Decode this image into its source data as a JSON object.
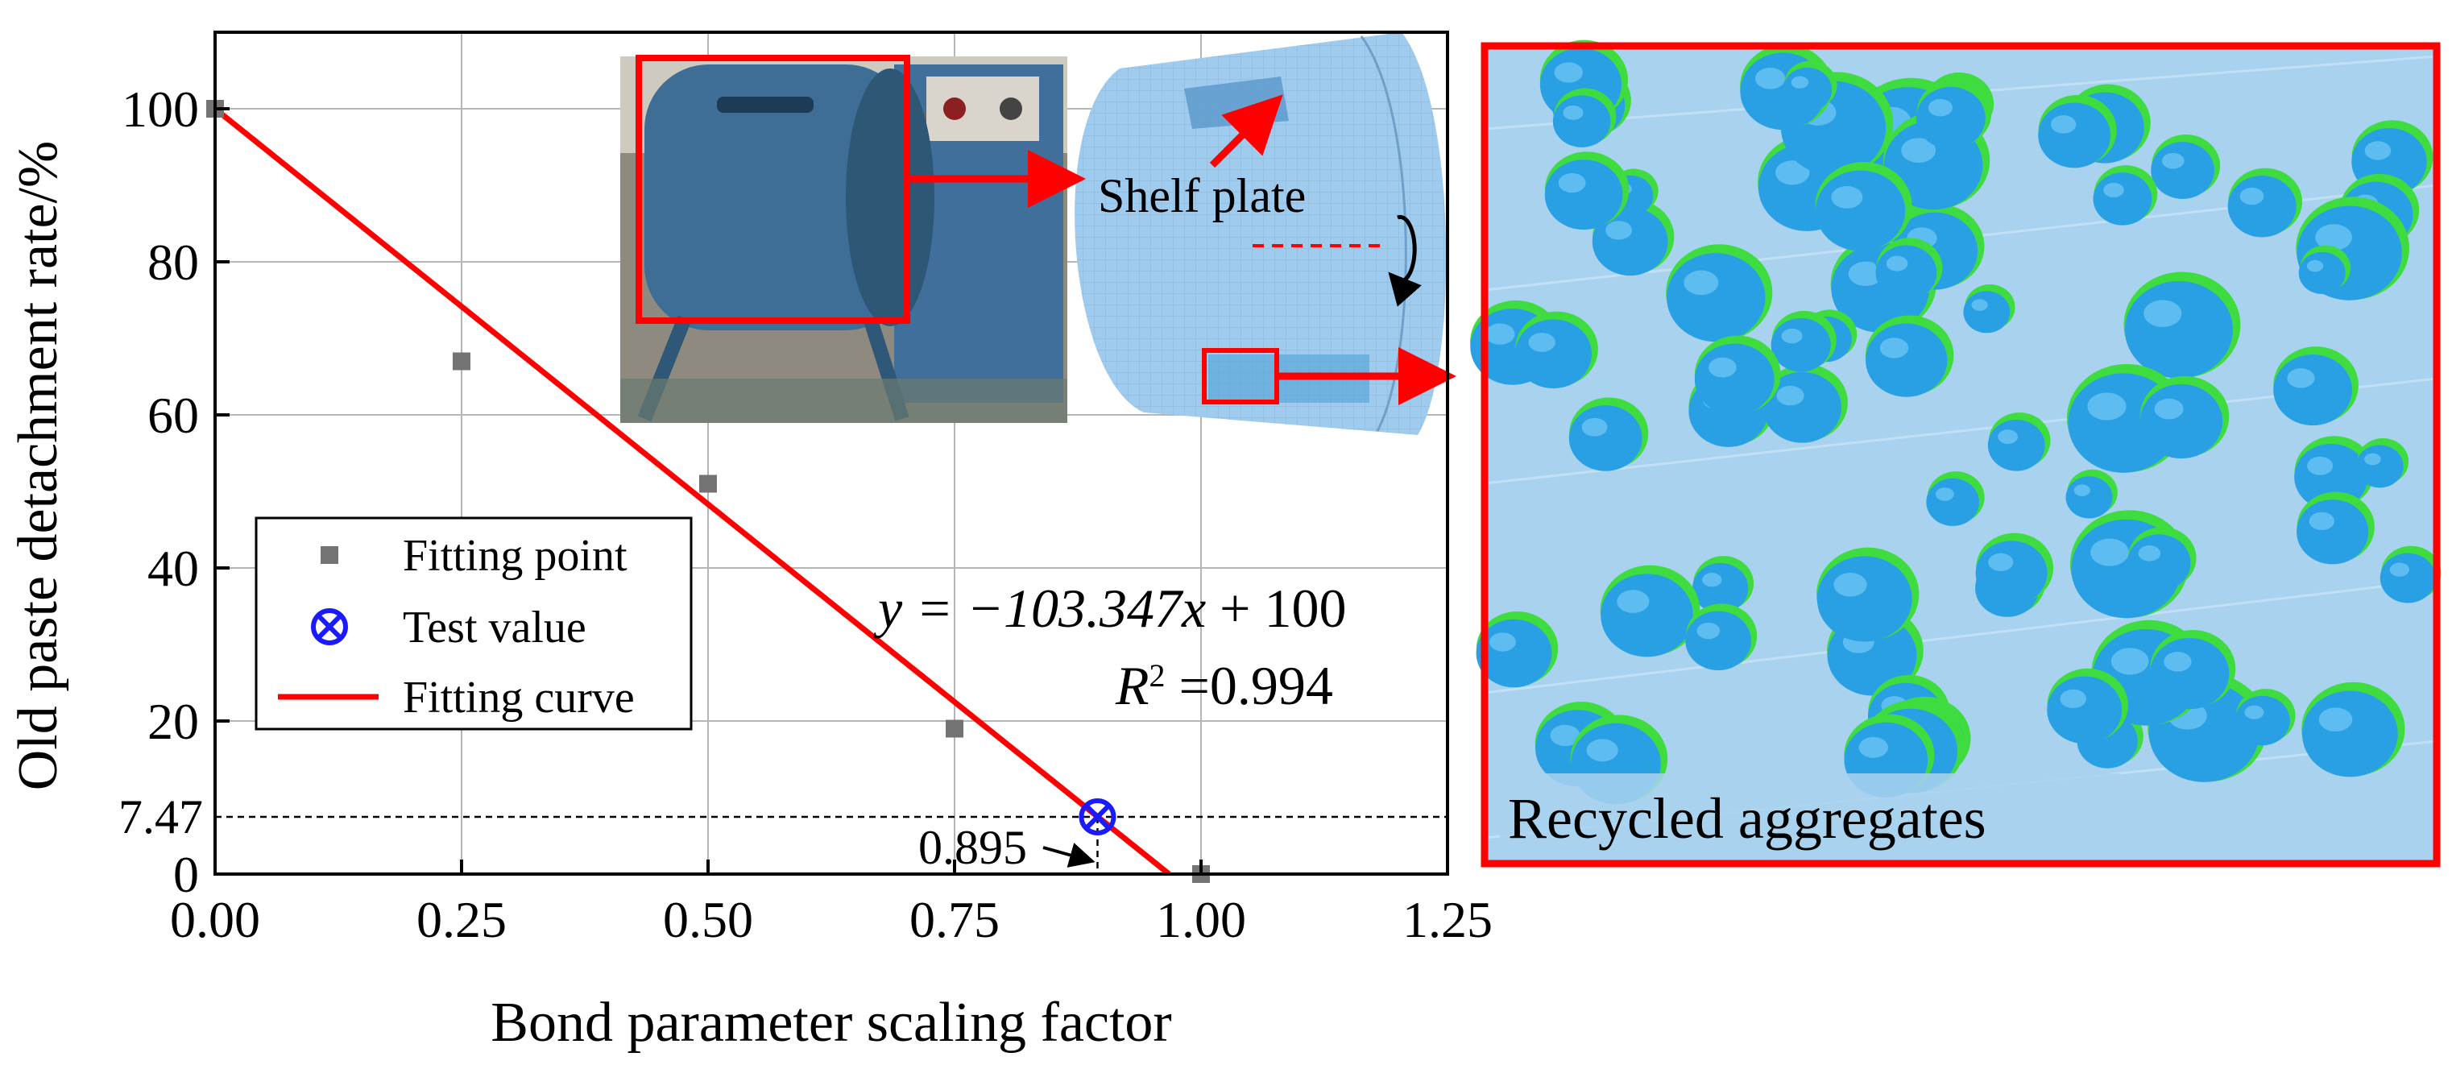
{
  "chart_data": {
    "type": "scatter",
    "xlabel": "Bond parameter scaling factor",
    "ylabel": "Old paste detachment rate/%",
    "xlim": [
      0,
      1.25
    ],
    "ylim": [
      0,
      110
    ],
    "xticks": [
      "0.00",
      "0.25",
      "0.50",
      "0.75",
      "1.00",
      "1.25"
    ],
    "yticks": [
      "0",
      "20",
      "40",
      "60",
      "80",
      "100"
    ],
    "grid": true,
    "legend_position": "lower-left",
    "series": [
      {
        "name": "Fitting point",
        "kind": "scatter",
        "marker": "square",
        "color": "#737373",
        "x": [
          0.0,
          0.25,
          0.5,
          0.75,
          1.0
        ],
        "y": [
          100,
          67,
          51,
          19,
          0
        ]
      },
      {
        "name": "Test value",
        "kind": "scatter",
        "marker": "circle-x",
        "color": "#1a1aff",
        "x": [
          0.895
        ],
        "y": [
          7.47
        ]
      },
      {
        "name": "Fitting curve",
        "kind": "line",
        "color": "#ff0000",
        "slope": -103.347,
        "intercept": 100
      }
    ],
    "equation": {
      "prefix": "y = −103.347",
      "var": "x",
      "suffix": " + 100",
      "r2_base": "R",
      "r2_sup": "2",
      "r2_value": " =0.994"
    },
    "annotations": {
      "y_ref_label": "7.47",
      "y_ref_value": 7.47,
      "x_ref_label": "0.895",
      "x_ref_value": 0.895
    }
  },
  "inset": {
    "shelf_plate_label": "Shelf plate"
  },
  "panel": {
    "caption": "Recycled aggregates",
    "border_color": "#ff0000"
  }
}
